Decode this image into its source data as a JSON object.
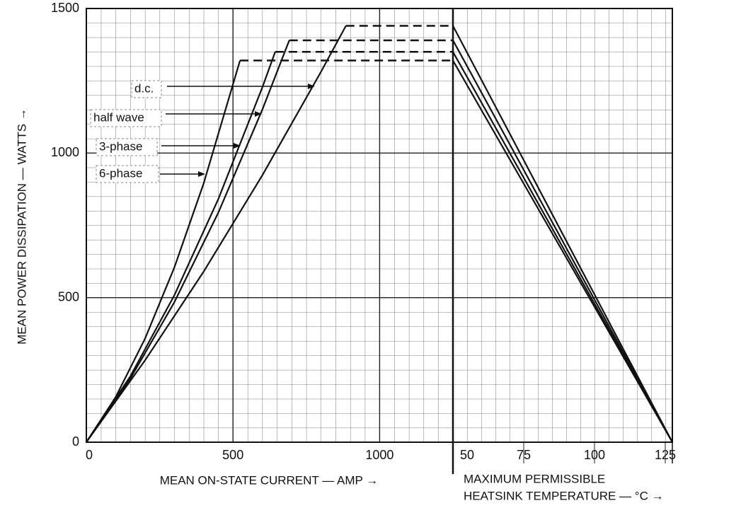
{
  "chart_data": [
    {
      "type": "line",
      "x_label": "MEAN ON-STATE CURRENT — AMP →",
      "y_label": "MEAN POWER DISSIPATION — WATTS →",
      "xlim": [
        0,
        1250
      ],
      "xticks": [
        0,
        500,
        1000
      ],
      "ylim": [
        0,
        1500
      ],
      "yticks": [
        0,
        500,
        1000,
        1500
      ],
      "grid": true,
      "series": [
        {
          "name": "6-phase",
          "color": "#111111",
          "x": [
            0,
            100,
            200,
            300,
            400,
            524
          ],
          "values": [
            0,
            156,
            358,
            604,
            895,
            1320
          ]
        },
        {
          "name": "3-phase",
          "color": "#111111",
          "x": [
            0,
            150,
            300,
            450,
            600,
            644
          ],
          "values": [
            0,
            228,
            508,
            841,
            1227,
            1350
          ]
        },
        {
          "name": "half wave",
          "color": "#111111",
          "x": [
            0,
            150,
            300,
            450,
            600,
            692
          ],
          "values": [
            0,
            220,
            484,
            794,
            1150,
            1390
          ]
        },
        {
          "name": "d.c.",
          "color": "#111111",
          "x": [
            0,
            200,
            400,
            600,
            800,
            885
          ],
          "values": [
            0,
            283,
            590,
            923,
            1281,
            1440
          ]
        }
      ]
    },
    {
      "type": "line",
      "x_label": [
        "MAXIMUM PERMISSIBLE",
        "HEATSINK TEMPERATURE — °C →"
      ],
      "xlim": [
        50,
        127.5
      ],
      "xticks": [
        50,
        75,
        100,
        125
      ],
      "ylim": [
        0,
        1500
      ],
      "series": [
        {
          "color": "#111111",
          "x": [
            50,
            127.5
          ],
          "values": [
            1320,
            0
          ]
        },
        {
          "color": "#111111",
          "x": [
            50,
            127.5
          ],
          "values": [
            1350,
            0
          ]
        },
        {
          "color": "#111111",
          "x": [
            50,
            127.5
          ],
          "values": [
            1390,
            0
          ]
        },
        {
          "color": "#111111",
          "x": [
            50,
            127.5
          ],
          "values": [
            1440,
            0
          ]
        }
      ]
    }
  ]
}
